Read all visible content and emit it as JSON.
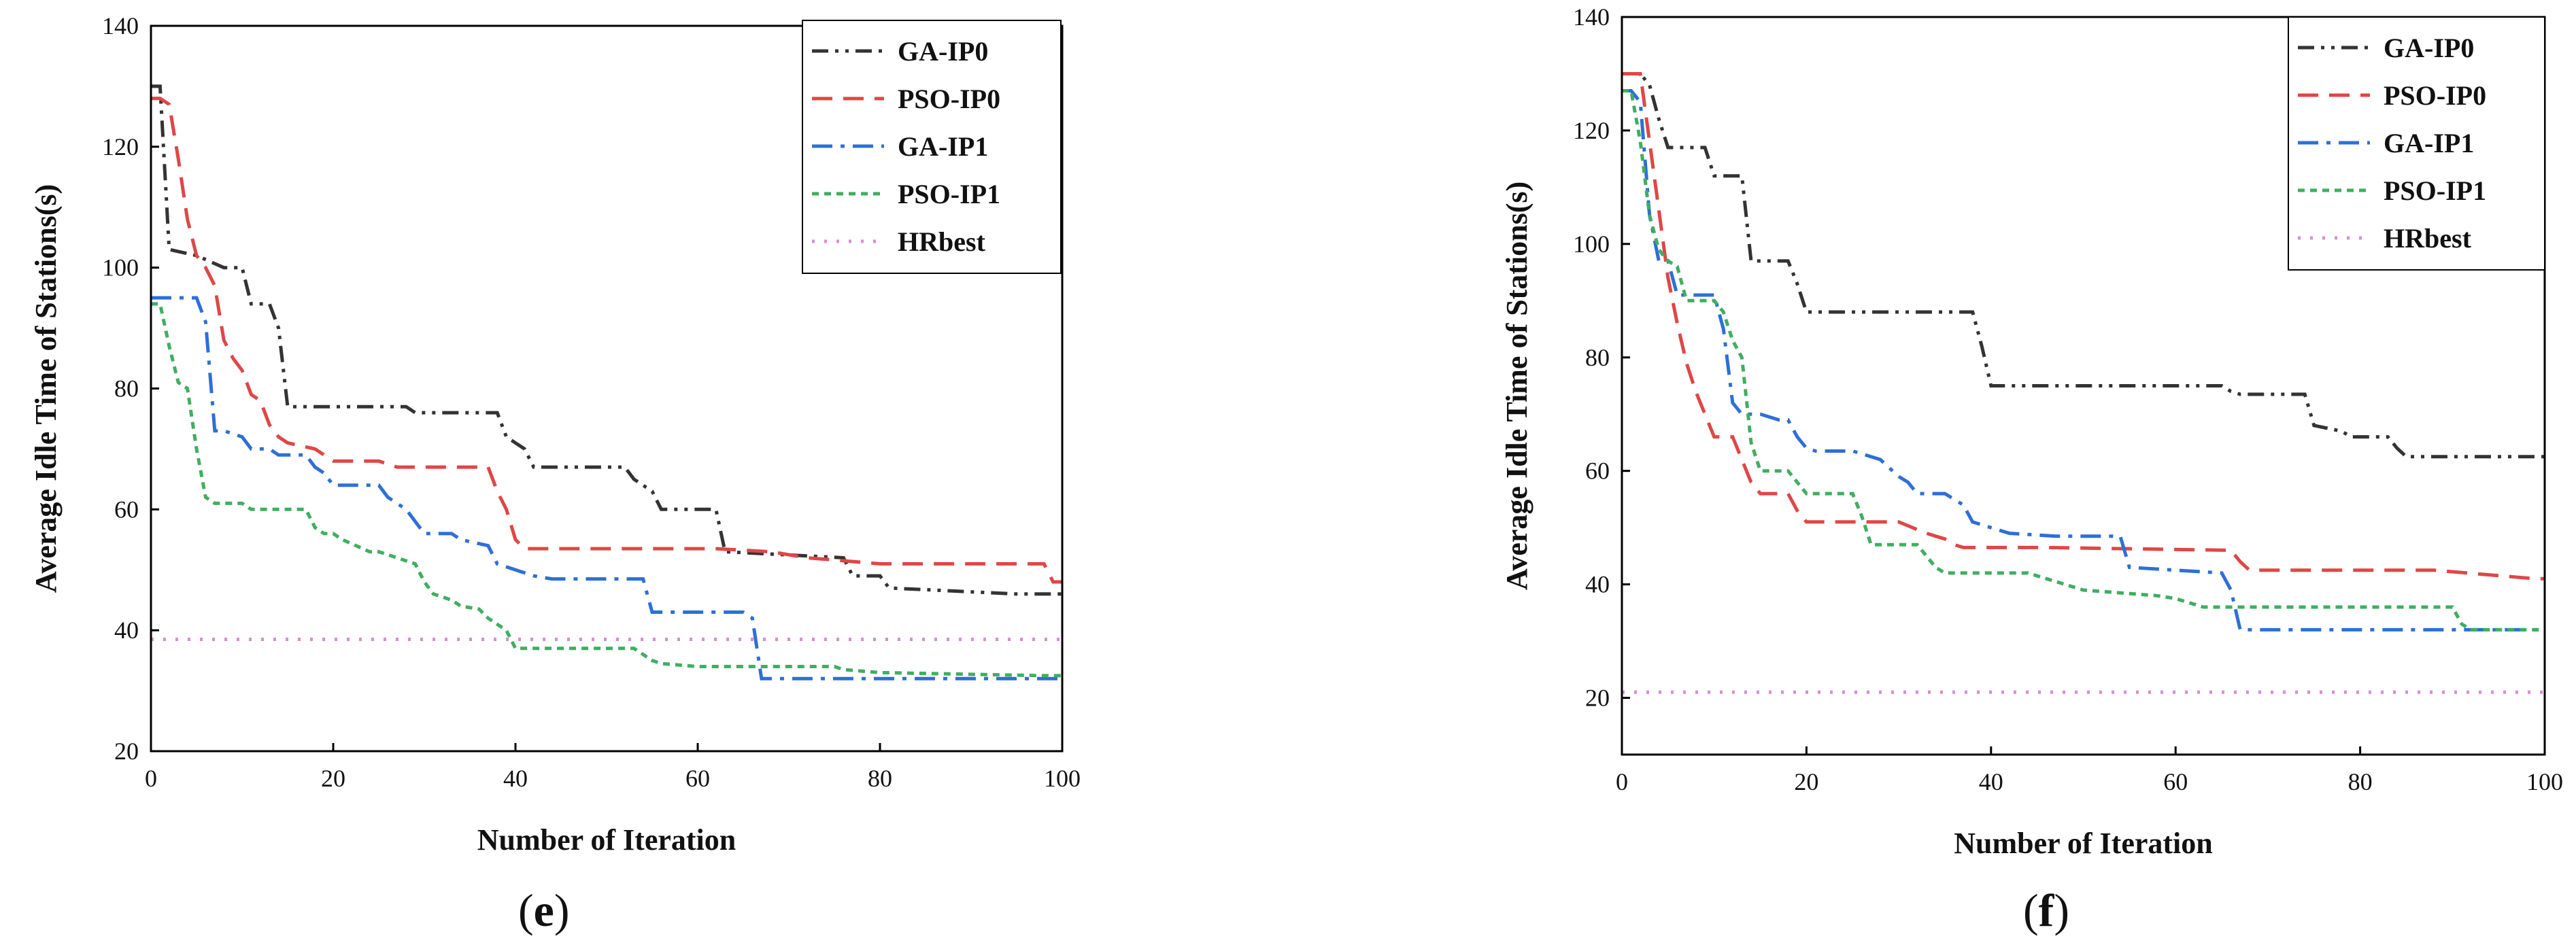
{
  "chart_data": [
    {
      "type": "line",
      "caption": "(e)",
      "caption_letter": "e",
      "xlabel": "Number of Iteration",
      "ylabel": "Average Idle Time of Stations(s)",
      "xlim": [
        0,
        100
      ],
      "ylim": [
        20,
        140
      ],
      "xticks": [
        0,
        20,
        40,
        60,
        80,
        100
      ],
      "yticks": [
        20,
        40,
        60,
        80,
        100,
        120,
        140
      ],
      "legend_position": "top-right",
      "series": [
        {
          "name": "GA-IP0",
          "color": "#333333",
          "dash": "dashdotdot",
          "x": [
            0,
            1,
            2,
            5,
            8,
            10,
            11,
            13,
            14,
            15,
            20,
            28,
            29,
            38,
            39,
            41,
            42,
            52,
            53,
            55,
            56,
            62,
            63,
            76,
            77,
            80,
            81,
            95,
            100
          ],
          "y": [
            130,
            130,
            103,
            102,
            100,
            100,
            94,
            94,
            90,
            77,
            77,
            77,
            76,
            76,
            72,
            70,
            67,
            67,
            65,
            63,
            60,
            60,
            53,
            52,
            49,
            49,
            47,
            46,
            46
          ]
        },
        {
          "name": "PSO-IP0",
          "color": "#e04646",
          "dash": "dash",
          "x": [
            0,
            1,
            2,
            3,
            4,
            5,
            6,
            7,
            8,
            9,
            10,
            11,
            12,
            13,
            14,
            15,
            18,
            19,
            20,
            25,
            27,
            30,
            37,
            38,
            39,
            40,
            41,
            48,
            60,
            62,
            68,
            72,
            76,
            80,
            98,
            99,
            100
          ],
          "y": [
            128,
            128,
            127,
            118,
            108,
            102,
            100,
            97,
            88,
            85,
            83,
            79,
            78,
            74,
            72,
            71,
            70,
            69,
            68,
            68,
            67,
            67,
            67,
            63,
            60,
            55,
            53.5,
            53.5,
            53.5,
            53.5,
            53,
            52,
            51.5,
            51,
            51,
            48,
            48
          ]
        },
        {
          "name": "GA-IP1",
          "color": "#2e6fd6",
          "dash": "dashdot",
          "x": [
            0,
            1,
            5,
            6,
            7,
            8,
            10,
            11,
            13,
            14,
            17,
            18,
            19,
            20,
            25,
            26,
            28,
            29,
            30,
            33,
            34,
            37,
            38,
            40,
            42,
            44,
            54,
            55,
            65,
            66,
            67,
            68,
            80,
            100
          ],
          "y": [
            95,
            95,
            95,
            91,
            73,
            73,
            72,
            70,
            70,
            69,
            69,
            67,
            66,
            64,
            64,
            62,
            60,
            58,
            56,
            56,
            55,
            54,
            51,
            50,
            49,
            48.5,
            48.5,
            43,
            43,
            42,
            32,
            32,
            32,
            32
          ]
        },
        {
          "name": "PSO-IP1",
          "color": "#3fae60",
          "dash": "dot",
          "x": [
            0,
            1,
            2,
            3,
            4,
            5,
            6,
            7,
            10,
            11,
            13,
            17,
            18,
            19,
            20,
            21,
            24,
            25,
            27,
            29,
            30,
            31,
            33,
            34,
            36,
            37,
            38,
            39,
            40,
            41,
            44,
            50,
            53,
            54,
            55,
            56,
            60,
            61,
            75,
            76,
            80,
            98,
            100
          ],
          "y": [
            94,
            94,
            87,
            81,
            80,
            70,
            62,
            61,
            61,
            60,
            60,
            60,
            57,
            56,
            56,
            55,
            53,
            53,
            52,
            51,
            48,
            46,
            45,
            44,
            43.5,
            42,
            41,
            40,
            37,
            37,
            37,
            37,
            37,
            36,
            35,
            34.5,
            34,
            34,
            34,
            33.5,
            33,
            32.5,
            32.5
          ]
        },
        {
          "name": "HRbest",
          "color": "#d48fd4",
          "dash": "fine",
          "x": [
            0,
            100
          ],
          "y": [
            38.5,
            38.5
          ]
        }
      ]
    },
    {
      "type": "line",
      "caption": "(f)",
      "caption_letter": "f",
      "xlabel": "Number of Iteration",
      "ylabel": "Average Idle Time of Stations(s)",
      "xlim": [
        0,
        100
      ],
      "ylim": [
        10,
        140
      ],
      "xticks": [
        0,
        20,
        40,
        60,
        80,
        100
      ],
      "yticks": [
        20,
        40,
        60,
        80,
        100,
        120,
        140
      ],
      "legend_position": "top-right",
      "series": [
        {
          "name": "GA-IP0",
          "color": "#333333",
          "dash": "dashdotdot",
          "x": [
            0,
            1,
            2,
            3,
            4,
            5,
            9,
            10,
            13,
            14,
            18,
            19,
            20,
            38,
            39,
            40,
            65,
            66,
            67,
            74,
            75,
            78,
            79,
            83,
            84,
            85,
            100
          ],
          "y": [
            130,
            130,
            130,
            128,
            122,
            117,
            117,
            112,
            112,
            97,
            97,
            93,
            88,
            88,
            82,
            75,
            75,
            74,
            73.5,
            73.5,
            68,
            67,
            66,
            66,
            64,
            62.5,
            62.5
          ]
        },
        {
          "name": "PSO-IP0",
          "color": "#e04646",
          "dash": "dash",
          "x": [
            0,
            1,
            2,
            3,
            4,
            5,
            6,
            7,
            8,
            9,
            10,
            12,
            13,
            14,
            15,
            18,
            19,
            20,
            21,
            30,
            33,
            34,
            35,
            36,
            37,
            46,
            66,
            67,
            68,
            88,
            99,
            100
          ],
          "y": [
            130,
            130,
            130,
            118,
            106,
            94,
            86,
            79,
            74,
            70,
            66,
            66,
            62,
            58,
            56,
            56,
            53,
            51,
            51,
            51,
            49,
            48.5,
            48,
            47,
            46.5,
            46.5,
            46,
            44,
            42.5,
            42.5,
            41,
            41
          ]
        },
        {
          "name": "GA-IP1",
          "color": "#2e6fd6",
          "dash": "dashdot",
          "x": [
            0,
            1,
            2,
            3,
            4,
            5,
            6,
            10,
            11,
            12,
            13,
            15,
            17,
            18,
            19,
            20,
            21,
            25,
            28,
            30,
            31,
            32,
            35,
            36,
            37,
            38,
            40,
            42,
            47,
            54,
            55,
            65,
            66,
            67,
            68,
            98,
            100
          ],
          "y": [
            127,
            127,
            125,
            105,
            97,
            97,
            91,
            91,
            85,
            72,
            70,
            70,
            69,
            69,
            66,
            64,
            63.5,
            63.5,
            62,
            59,
            58,
            56,
            56,
            55,
            54,
            51,
            50,
            49,
            48.5,
            48.5,
            43,
            42,
            39,
            32,
            32,
            32,
            32
          ]
        },
        {
          "name": "PSO-IP1",
          "color": "#3fae60",
          "dash": "dot",
          "x": [
            0,
            1,
            2,
            3,
            4,
            5,
            6,
            7,
            9,
            10,
            11,
            12,
            13,
            14,
            15,
            18,
            19,
            20,
            25,
            26,
            27,
            32,
            33,
            34,
            35,
            36,
            44,
            46,
            47,
            48,
            49,
            50,
            54,
            58,
            60,
            61,
            62,
            63,
            90,
            91,
            92,
            100
          ],
          "y": [
            127,
            127,
            118,
            105,
            99,
            97,
            96,
            90,
            90,
            90,
            88,
            83,
            80,
            65,
            60,
            60,
            58,
            56,
            56,
            52,
            47,
            47,
            45,
            43,
            42,
            42,
            42,
            41,
            40.5,
            40,
            39.5,
            39,
            38.5,
            38,
            37.5,
            37,
            36.5,
            36,
            36,
            33,
            32,
            32
          ]
        },
        {
          "name": "HRbest",
          "color": "#d48fd4",
          "dash": "fine",
          "x": [
            0,
            100
          ],
          "y": [
            21,
            21
          ]
        }
      ]
    }
  ]
}
